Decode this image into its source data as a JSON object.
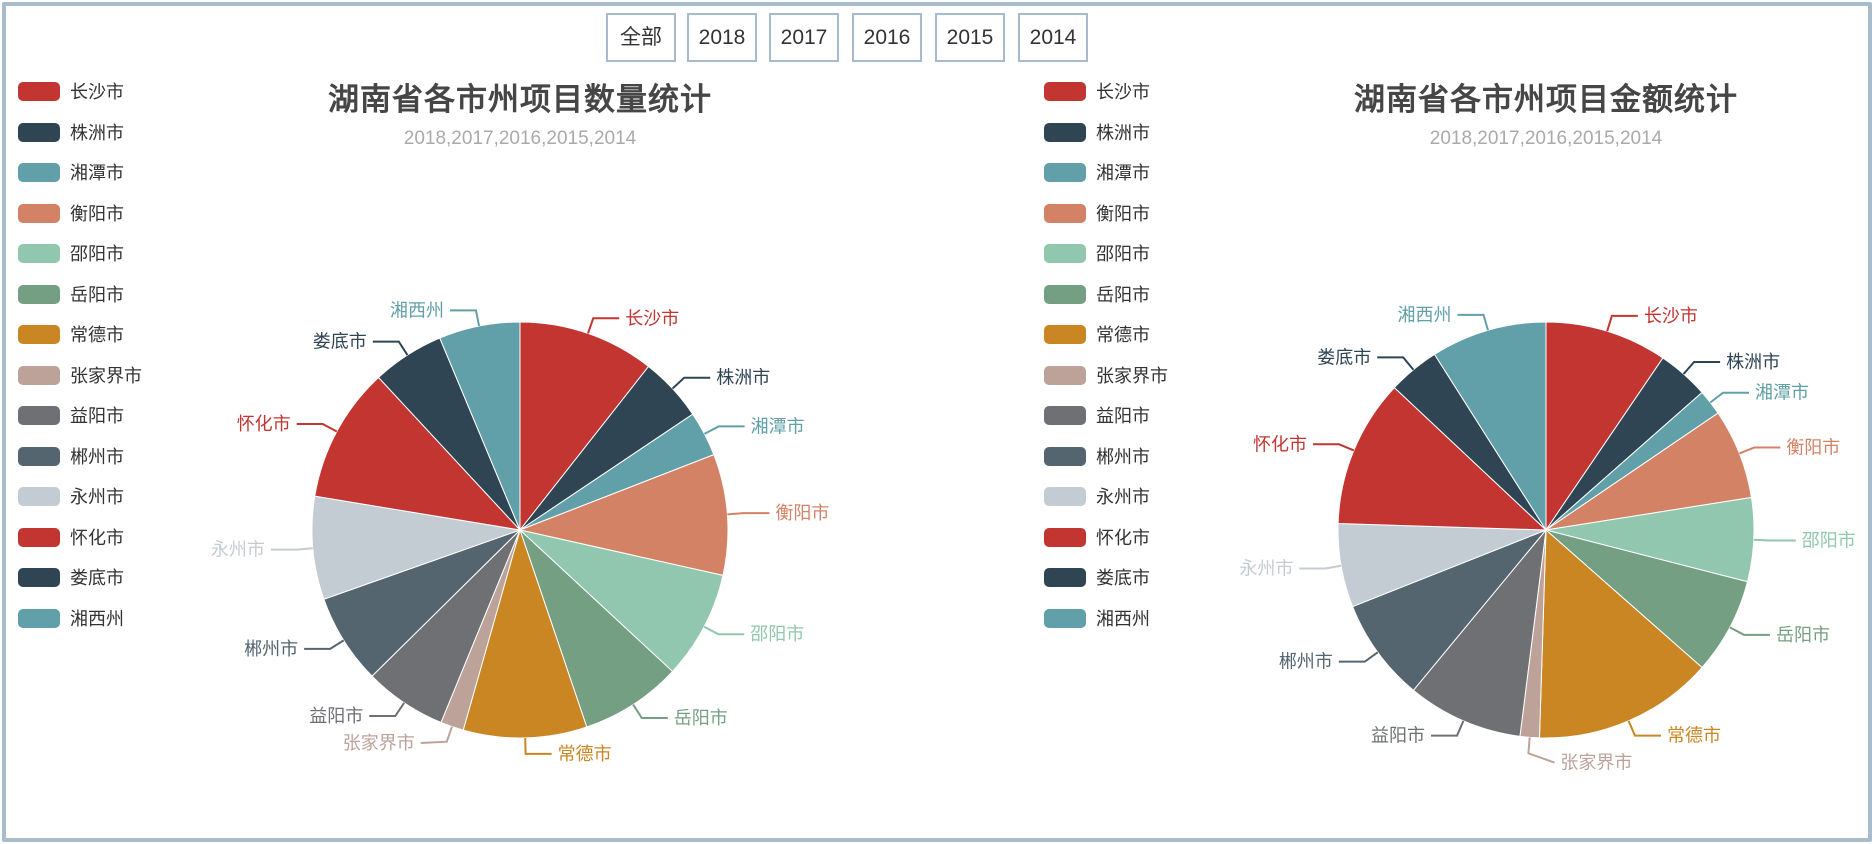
{
  "filter_buttons": [
    "全部",
    "2018",
    "2017",
    "2016",
    "2015",
    "2014"
  ],
  "palette": [
    "#c23531",
    "#2f4554",
    "#61a0a8",
    "#d48265",
    "#91c7ae",
    "#749f83",
    "#ca8622",
    "#bda29a",
    "#6e7074",
    "#546570",
    "#c4ccd3",
    "#c23531",
    "#2f4554",
    "#61a0a8"
  ],
  "colors": {
    "frame_border": "#a9bcce",
    "button_border": "#a6bbce",
    "title_text": "#464646",
    "subtitle_text": "#aaaaaa",
    "legend_text": "#333333"
  },
  "chart_data": [
    {
      "type": "pie",
      "title": "湖南省各市州项目数量统计",
      "subtitle": "2018,2017,2016,2015,2014",
      "legend_position": "left",
      "start_angle": "top",
      "direction": "clockwise",
      "value_unit": "percent (estimated from slice angles; no numeric labels shown)",
      "categories": [
        "长沙市",
        "株洲市",
        "湘潭市",
        "衡阳市",
        "邵阳市",
        "岳阳市",
        "常德市",
        "张家界市",
        "益阳市",
        "郴州市",
        "永州市",
        "怀化市",
        "娄底市",
        "湘西州"
      ],
      "values": [
        10.6,
        5.0,
        3.5,
        9.4,
        8.4,
        7.9,
        9.6,
        1.8,
        6.4,
        7.0,
        8.0,
        10.5,
        5.6,
        6.3
      ]
    },
    {
      "type": "pie",
      "title": "湖南省各市州项目金额统计",
      "subtitle": "2018,2017,2016,2015,2014",
      "legend_position": "left",
      "start_angle": "top",
      "direction": "clockwise",
      "value_unit": "percent (estimated from slice angles; no numeric labels shown)",
      "categories": [
        "长沙市",
        "株洲市",
        "湘潭市",
        "衡阳市",
        "邵阳市",
        "岳阳市",
        "常德市",
        "张家界市",
        "益阳市",
        "郴州市",
        "永州市",
        "怀化市",
        "娄底市",
        "湘西州"
      ],
      "values": [
        9.5,
        4.0,
        2.0,
        7.0,
        6.5,
        7.5,
        14.0,
        1.5,
        9.0,
        8.0,
        6.5,
        11.5,
        4.0,
        9.0
      ]
    }
  ]
}
